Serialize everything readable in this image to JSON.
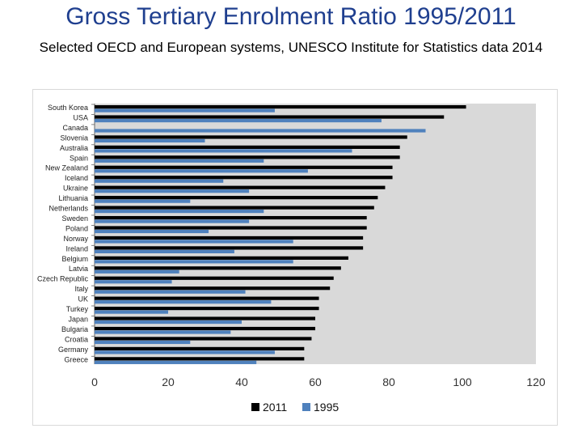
{
  "chart_data": {
    "type": "bar",
    "orientation": "horizontal",
    "title": "Gross Tertiary Enrolment Ratio 1995/2011",
    "subtitle": "Selected OECD and European systems, UNESCO Institute for Statistics data 2014",
    "categories": [
      "South Korea",
      "USA",
      "Canada",
      "Slovenia",
      "Australia",
      "Spain",
      "New Zealand",
      "Iceland",
      "Ukraine",
      "Lithuania",
      "Netherlands",
      "Sweden",
      "Poland",
      "Norway",
      "Ireland",
      "Belgium",
      "Latvia",
      "Czech Republic",
      "Italy",
      "UK",
      "Turkey",
      "Japan",
      "Bulgaria",
      "Croatia",
      "Germany",
      "Greece"
    ],
    "series": [
      {
        "name": "2011",
        "color": "#000000",
        "values": [
          101,
          95,
          null,
          85,
          83,
          83,
          81,
          81,
          79,
          77,
          76,
          74,
          74,
          73,
          73,
          69,
          67,
          65,
          64,
          61,
          61,
          60,
          60,
          59,
          57,
          57
        ]
      },
      {
        "name": "1995",
        "color": "#4f81bd",
        "values": [
          49,
          78,
          90,
          30,
          70,
          46,
          58,
          35,
          42,
          26,
          46,
          42,
          31,
          54,
          38,
          54,
          23,
          21,
          41,
          48,
          20,
          40,
          37,
          26,
          49,
          44
        ]
      }
    ],
    "xlim": [
      0,
      120
    ],
    "xticks": [
      "0",
      "20",
      "40",
      "60",
      "80",
      "100",
      "120"
    ],
    "grid": false,
    "legend": "bottom"
  }
}
